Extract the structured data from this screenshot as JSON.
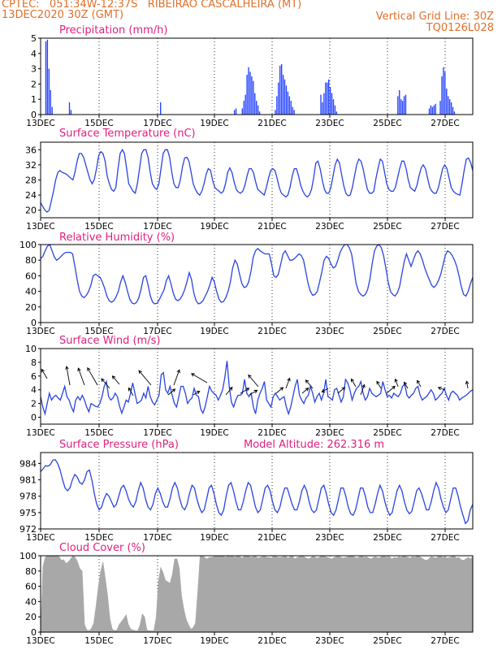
{
  "header": {
    "line1": "CPTEC:   051:34W-12:37S   RIBEIRAO CASCALHEIRA (MT)",
    "line2": "13DEC2020 30Z (GMT)",
    "grid_note": "Vertical Grid Line: 30Z",
    "code": "TQ0126L028"
  },
  "colors": {
    "title": "#e0207f",
    "header": "#e0702a",
    "precip": "#2040ff",
    "line": "#2a44e0",
    "cloud": "#a8a8a8",
    "axis": "#000000"
  },
  "date_labels": [
    "13DEC",
    "15DEC",
    "17DEC",
    "19DEC",
    "21DEC",
    "23DEC",
    "25DEC",
    "27DEC"
  ],
  "time_axis": {
    "start": "13DEC2020 12Z",
    "end": "28DEC2020 06Z",
    "step_hours": 6
  },
  "chart_data": [
    {
      "type": "bar",
      "title": "Precipitation (mm/h)",
      "ylim": [
        0,
        5
      ],
      "yticks": [
        "0",
        "1",
        "2",
        "3",
        "4",
        "5"
      ],
      "values": [
        0,
        0,
        0,
        4.8,
        4.9,
        3,
        1.6,
        0.5,
        0,
        0,
        0,
        0,
        0,
        0,
        0,
        0,
        0,
        0,
        0.8,
        0.3,
        0,
        0,
        0,
        0,
        0,
        0,
        0,
        0,
        0,
        0,
        0,
        0,
        0,
        0,
        0,
        0,
        0,
        0,
        0,
        0,
        0,
        0,
        0,
        0,
        0,
        0,
        0,
        0,
        0,
        0,
        0,
        0,
        0,
        0,
        0,
        0,
        0,
        0,
        0,
        0,
        0,
        0,
        0,
        0,
        0,
        0,
        0,
        0,
        0,
        0,
        0,
        0,
        0,
        0,
        0,
        0,
        0.8,
        0,
        0,
        0,
        0,
        0,
        0,
        0,
        0,
        0,
        0,
        0,
        0,
        0,
        0,
        0,
        0,
        0,
        0,
        0,
        0,
        0,
        0,
        0,
        0,
        0,
        0,
        0,
        0,
        0,
        0,
        0,
        0,
        0,
        0,
        0,
        0,
        0,
        0,
        0,
        0,
        0,
        0,
        0,
        0,
        0,
        0,
        0.3,
        0.4,
        0,
        0,
        0,
        0.4,
        0.9,
        1.3,
        2.6,
        3.1,
        2.8,
        2.5,
        2.2,
        1.4,
        0.9,
        0.6,
        0.2,
        0,
        0,
        0,
        0,
        0,
        0,
        0,
        0,
        0,
        0.3,
        1.2,
        2.1,
        3.2,
        3.3,
        2.6,
        2.3,
        1.9,
        1.5,
        1.2,
        0.9,
        0.5,
        0.3,
        0,
        0,
        0,
        0,
        0,
        0,
        0,
        0,
        0,
        0,
        0,
        0,
        0,
        0,
        0,
        0,
        1.3,
        0.8,
        1.4,
        2.1,
        2.1,
        2.3,
        1.8,
        1.4,
        1,
        0.6,
        0.2,
        0,
        0,
        0,
        0,
        0,
        0,
        0,
        0,
        0,
        0,
        0,
        0,
        0,
        0,
        0,
        0,
        0,
        0,
        0,
        0,
        0,
        0,
        0,
        0,
        0,
        0,
        0,
        0,
        0,
        0,
        0,
        0,
        0,
        0,
        0,
        0,
        0,
        0,
        1.2,
        1.6,
        1,
        0.9,
        1.2,
        1.3,
        0,
        0,
        0,
        0,
        0,
        0,
        0,
        0,
        0,
        0,
        0,
        0,
        0,
        0,
        0.4,
        0.6,
        0.5,
        0.6,
        0.7,
        0,
        0,
        0.9,
        2.5,
        3.1,
        2.8,
        1.7,
        1.2,
        1,
        0.8,
        0.5,
        0.2,
        0,
        0,
        0,
        0,
        0,
        0,
        0,
        0,
        0,
        0,
        0
      ]
    },
    {
      "type": "line",
      "title": "Surface Temperature (nC)",
      "ylim": [
        18,
        38
      ],
      "yticks": [
        "20",
        "24",
        "28",
        "32",
        "36"
      ],
      "values": [
        22,
        21,
        20,
        19.5,
        20,
        22.5,
        25,
        28,
        30,
        30.5,
        30,
        29.8,
        29.5,
        29,
        28.5,
        28,
        30,
        33,
        35,
        35,
        34,
        32,
        30,
        28,
        27,
        28.2,
        31,
        34.5,
        35.5,
        35,
        33,
        29,
        27,
        25.5,
        25,
        26,
        31,
        35,
        36,
        35,
        31,
        27,
        26,
        25,
        24.5,
        27,
        31,
        35,
        36,
        36,
        34,
        30,
        27,
        26,
        25.5,
        27,
        31,
        35,
        36,
        36,
        34,
        30,
        27,
        26,
        26,
        28,
        31.5,
        33.8,
        34,
        33,
        30,
        27,
        25.5,
        24.5,
        24,
        25,
        27,
        29.5,
        31,
        30.6,
        28,
        26,
        25.5,
        25,
        24.5,
        25,
        27,
        30,
        31.2,
        30,
        27.5,
        25.5,
        24.8,
        24.5,
        25,
        26.5,
        29,
        31,
        31,
        30,
        27.5,
        25.5,
        25,
        24.5,
        24,
        26,
        28.5,
        30.5,
        31,
        30.5,
        28.5,
        26,
        24.5,
        24,
        23.5,
        24,
        26,
        29,
        31,
        31,
        29,
        26.5,
        25,
        24,
        23.5,
        24,
        25.5,
        28.5,
        32.5,
        33,
        31,
        28,
        25.5,
        24.5,
        24.5,
        26,
        29,
        32,
        33.5,
        32.5,
        29.5,
        26.5,
        24.5,
        23.8,
        24,
        26,
        29,
        32,
        33.5,
        33,
        31,
        28,
        25.5,
        24.5,
        24.5,
        25,
        28.5,
        31.2,
        33.5,
        33,
        30,
        27,
        25.5,
        25,
        25,
        26,
        28.5,
        31,
        33,
        33,
        31,
        28,
        26,
        25.5,
        25,
        26.5,
        29,
        31.2,
        32,
        31,
        28.5,
        26,
        25,
        24.5,
        24.5,
        26,
        28.5,
        31,
        32,
        31,
        28.5,
        26,
        25,
        24.5,
        24.2,
        24,
        27,
        30.5,
        33.5,
        33.8,
        32.6,
        30.5
      ]
    },
    {
      "type": "line",
      "title": "Relative Humidity (%)",
      "ylim": [
        0,
        100
      ],
      "yticks": [
        "0",
        "20",
        "40",
        "60",
        "80",
        "100"
      ],
      "values": [
        82,
        85,
        92,
        98,
        100,
        92,
        84,
        80,
        82,
        85,
        88,
        90,
        90,
        90,
        88,
        72,
        55,
        40,
        34,
        32,
        35,
        40,
        48,
        60,
        62,
        60,
        58,
        52,
        44,
        34,
        28,
        26,
        28,
        33,
        40,
        52,
        60,
        52,
        40,
        30,
        25,
        24,
        26,
        32,
        44,
        58,
        60,
        48,
        34,
        26,
        24,
        25,
        30,
        36,
        42,
        54,
        60,
        50,
        38,
        30,
        28,
        30,
        35,
        42,
        52,
        64,
        55,
        38,
        28,
        24,
        25,
        28,
        34,
        40,
        48,
        58,
        52,
        40,
        30,
        26,
        27,
        32,
        40,
        52,
        70,
        80,
        75,
        62,
        50,
        45,
        46,
        52,
        66,
        84,
        92,
        95,
        92,
        90,
        88,
        88,
        88,
        75,
        60,
        58,
        62,
        75,
        88,
        92,
        86,
        80,
        80,
        82,
        85,
        88,
        86,
        80,
        65,
        50,
        40,
        35,
        36,
        40,
        52,
        65,
        80,
        85,
        82,
        75,
        70,
        72,
        80,
        90,
        96,
        100,
        100,
        96,
        88,
        70,
        50,
        40,
        36,
        34,
        36,
        42,
        55,
        75,
        92,
        98,
        100,
        96,
        86,
        70,
        52,
        40,
        36,
        34,
        38,
        46,
        62,
        78,
        88,
        80,
        72,
        80,
        88,
        92,
        88,
        80,
        70,
        62,
        55,
        48,
        45,
        48,
        54,
        62,
        74,
        86,
        92,
        90,
        86,
        80,
        72,
        60,
        46,
        36,
        34,
        40,
        50,
        58
      ]
    },
    {
      "type": "line",
      "title": "Surface Wind (m/s)",
      "ylim": [
        -1,
        10
      ],
      "yticks": [
        "0",
        "2",
        "4",
        "6",
        "8",
        "10"
      ],
      "values": [
        3,
        1.5,
        0.5,
        2,
        3.5,
        2.5,
        3,
        3.2,
        2.8,
        2.5,
        3.5,
        4.5,
        3,
        2.5,
        1.5,
        0.8,
        2.5,
        3,
        2.5,
        3.2,
        2.5,
        1.5,
        0.8,
        2,
        1.8,
        1.6,
        1.5,
        2,
        3,
        4.5,
        5.2,
        3,
        2.5,
        2.8,
        3.5,
        3,
        1.6,
        0.6,
        1.5,
        2.5,
        2.2,
        3.5,
        5,
        3.5,
        2,
        2.2,
        2.5,
        3.5,
        2.8,
        4.5,
        3,
        2.2,
        1.8,
        2.5,
        3.2,
        6.2,
        6.5,
        4,
        3.5,
        4.5,
        3.2,
        2,
        1.5,
        3,
        4.5,
        4.5,
        3.5,
        2,
        2.5,
        2.8,
        4.2,
        3.2,
        3,
        1.2,
        0.6,
        1.5,
        3,
        4.5,
        3.8,
        3.5,
        3.2,
        2.5,
        3.2,
        4,
        5.8,
        8.2,
        4.5,
        2.2,
        1.5,
        2.5,
        3.2,
        3.2,
        3.5,
        5.5,
        3.5,
        3,
        3.5,
        1.5,
        0.5,
        2.5,
        3.5,
        4.2,
        5.2,
        2.5,
        2,
        1.5,
        3,
        3.5,
        3,
        2.5,
        2.8,
        3,
        1.5,
        0.5,
        1.5,
        3,
        4.5,
        5.5,
        3.2,
        2.5,
        2,
        2.8,
        3.2,
        4.5,
        3.5,
        2.2,
        3,
        3.5,
        2.5,
        3.5,
        5.5,
        3,
        2.8,
        2.5,
        4,
        4.2,
        3.2,
        2.2,
        3,
        5.5,
        5,
        4,
        2.5,
        3.5,
        4.2,
        4.5,
        5.2,
        3.5,
        2.5,
        3,
        4.2,
        3.5,
        3.2,
        3,
        3.2,
        3.5,
        5.2,
        4,
        3,
        3.2,
        2.8,
        3.5,
        3.2,
        3,
        3.5,
        4.5,
        4.8,
        3.2,
        2.8,
        3.2,
        3.5,
        4.2,
        4.5,
        3.2,
        2.5,
        2.8,
        3,
        3.5,
        4,
        3.5,
        2.5,
        2.8,
        3.2,
        3.5,
        4.2,
        3.2,
        2.5,
        3.5,
        3.8,
        3.5,
        3.2,
        2.5,
        2.8,
        3,
        3.2,
        3.5,
        3.8,
        4
      ]
    },
    {
      "type": "line",
      "title": "Surface Pressure (hPa)",
      "annotation": "Model Altitude: 262.316  m",
      "ylim": [
        972,
        986
      ],
      "yticks": [
        "972",
        "975",
        "978",
        "981",
        "984"
      ],
      "values": [
        982.5,
        983,
        983.6,
        983.5,
        983.8,
        984.6,
        984.7,
        984,
        982.8,
        981,
        979.5,
        979,
        979.5,
        981,
        982,
        981.5,
        980.5,
        980.2,
        981,
        982.5,
        982.8,
        981,
        978.5,
        976.5,
        975.5,
        976,
        977.5,
        978.5,
        978,
        977,
        976,
        976.5,
        978,
        979.5,
        980,
        979,
        977.5,
        976.5,
        976,
        977,
        979,
        980.5,
        979.5,
        977.5,
        976,
        975.5,
        976.5,
        978.5,
        979.5,
        978.5,
        977,
        976,
        976,
        977.5,
        979.5,
        980.5,
        979.5,
        977.5,
        976,
        975.5,
        976.5,
        978.5,
        980,
        979.5,
        977.5,
        976,
        975,
        975.5,
        977.5,
        979.5,
        980,
        978.5,
        976.5,
        975,
        974.5,
        975.5,
        978,
        980,
        980.5,
        979,
        977,
        975.5,
        975.5,
        977,
        979,
        980.5,
        980,
        978,
        976,
        975,
        975.5,
        977.5,
        979.5,
        980,
        979,
        977,
        975.5,
        975,
        976,
        978,
        979.5,
        979.5,
        978,
        976.5,
        975.5,
        975.5,
        977,
        979,
        980,
        979,
        977,
        975.5,
        975,
        975.5,
        977.5,
        979.5,
        980,
        978.5,
        976.5,
        975,
        974.5,
        975.5,
        977.5,
        979.5,
        979.5,
        978,
        976,
        974.8,
        974.5,
        975.5,
        977.5,
        979.5,
        979.5,
        978,
        976,
        975,
        975,
        976.5,
        978.5,
        980,
        979,
        977,
        975.5,
        974.5,
        975,
        977,
        979,
        980,
        979,
        977,
        975.5,
        974.8,
        975.2,
        977,
        979,
        979.5,
        978.5,
        977,
        975.5,
        975.5,
        977,
        979,
        980.5,
        979.5,
        977.5,
        976,
        975,
        975.5,
        977.5,
        979.5,
        979.5,
        978,
        976,
        974.5,
        973,
        973.5,
        975.5,
        976.5
      ]
    },
    {
      "type": "area",
      "title": "Cloud Cover (%)",
      "ylim": [
        0,
        100
      ],
      "yticks": [
        "0",
        "20",
        "40",
        "60",
        "80",
        "100"
      ],
      "values": [
        0,
        86,
        98,
        100,
        100,
        100,
        100,
        100,
        99,
        94,
        95,
        90,
        92,
        96,
        100,
        98,
        92,
        83,
        80,
        10,
        3,
        2,
        5,
        12,
        35,
        60,
        80,
        92,
        70,
        48,
        18,
        4,
        2,
        3,
        10,
        14,
        18,
        23,
        10,
        4,
        3,
        2,
        2,
        9,
        24,
        20,
        3,
        2,
        2,
        2,
        19,
        67,
        85,
        78,
        68,
        66,
        64,
        76,
        96,
        96,
        84,
        48,
        30,
        17,
        10,
        4,
        6,
        12,
        54,
        100,
        100,
        98,
        96,
        98,
        98,
        99,
        100,
        100,
        100,
        100,
        98,
        100,
        99,
        100,
        98,
        100,
        100,
        97,
        99,
        100,
        100,
        98,
        99,
        100,
        97,
        98,
        99,
        100,
        98,
        98,
        97,
        100,
        99,
        98,
        98,
        99,
        100,
        97,
        99,
        100,
        96,
        98,
        99,
        100,
        99,
        97,
        96,
        98,
        100,
        98,
        97,
        99,
        100,
        99,
        98,
        97,
        96,
        98,
        99,
        100,
        98,
        97,
        98,
        99,
        100,
        100,
        98,
        97,
        99,
        100,
        98,
        99,
        97,
        96,
        98,
        99,
        97,
        98,
        100,
        99,
        98,
        99,
        96,
        98,
        97,
        99,
        98,
        100,
        99,
        98,
        97,
        99,
        98,
        100,
        99,
        97,
        95,
        94,
        96,
        99,
        98,
        97,
        99,
        100,
        98,
        99,
        97,
        98,
        99,
        100,
        97,
        98,
        95,
        94,
        96,
        98,
        96,
        99
      ]
    }
  ]
}
